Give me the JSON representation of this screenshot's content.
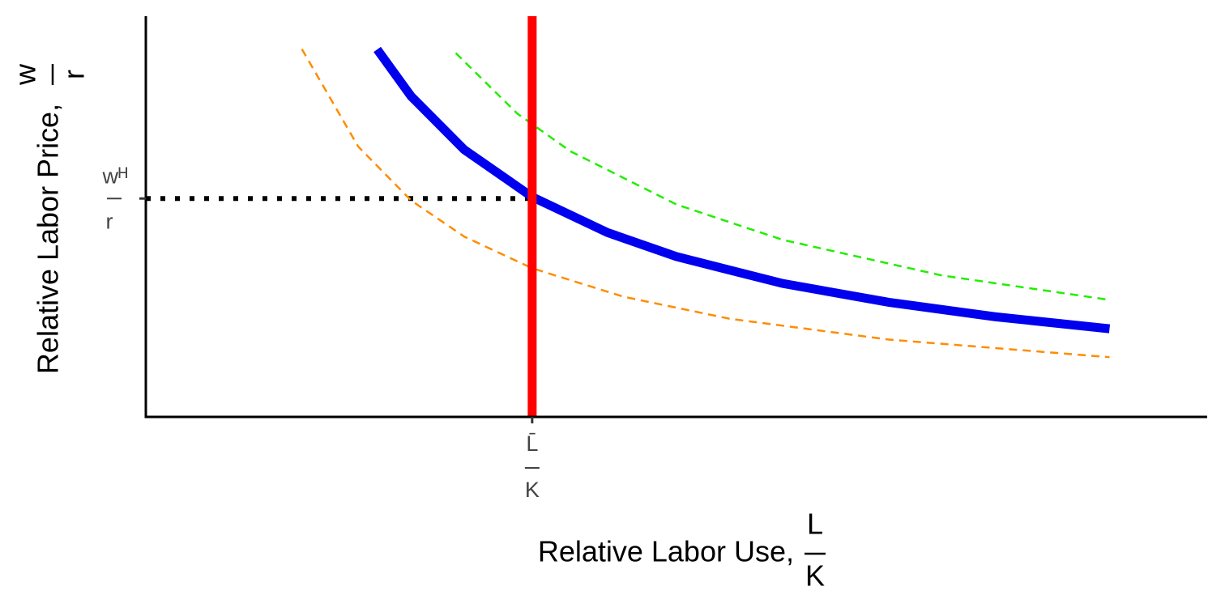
{
  "chart_data": {
    "type": "line",
    "xlabel": {
      "text": "Relative Labor Use,",
      "numerator": "L",
      "denominator": "K"
    },
    "ylabel": {
      "text": "Relative Labor Price,",
      "numerator": "w",
      "denominator": "r"
    },
    "xlim": [
      0,
      10
    ],
    "ylim": [
      0,
      10
    ],
    "xticks": [
      {
        "value": 3.64,
        "label": {
          "numerator": "L̄",
          "denominator": "K"
        }
      }
    ],
    "yticks": [
      {
        "value": 5.45,
        "label": {
          "numerator": "wᴴ",
          "denominator": "r"
        }
      }
    ],
    "guide_color": "#000000",
    "series": [
      {
        "color": "#ff8c00",
        "style": "dashed",
        "x": [
          1.47,
          2,
          2.5,
          3,
          3.64,
          4.5,
          5.5,
          7,
          9.08
        ],
        "values": [
          9.18,
          6.75,
          5.4,
          4.5,
          3.71,
          3.0,
          2.45,
          1.93,
          1.49
        ]
      },
      {
        "color": "#22ee00",
        "style": "dashed",
        "x": [
          2.92,
          3.5,
          4,
          5,
          6,
          7.5,
          9.08
        ],
        "values": [
          9.08,
          7.57,
          6.63,
          5.3,
          4.42,
          3.53,
          2.92
        ]
      },
      {
        "color": "#0000ee",
        "style": "solid",
        "x": [
          2.18,
          2.5,
          3,
          3.64,
          4.35,
          5,
          6,
          7,
          8,
          9.08
        ],
        "values": [
          9.17,
          8.0,
          6.67,
          5.49,
          4.6,
          4.0,
          3.33,
          2.86,
          2.5,
          2.2
        ]
      },
      {
        "color": "#ff0000",
        "style": "solid",
        "x": [
          3.64,
          3.64
        ],
        "values": [
          0,
          10
        ]
      }
    ]
  }
}
